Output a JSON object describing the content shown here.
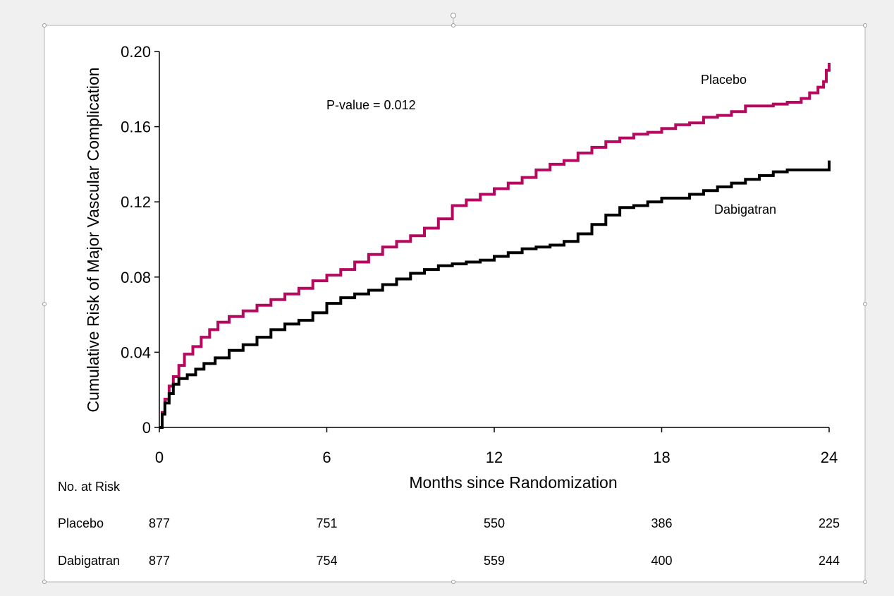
{
  "chart_data": {
    "type": "line",
    "title": "",
    "xlabel": "Months since Randomization",
    "ylabel": "Cumulative Risk of Major Vascular Complication",
    "xlim": [
      0,
      24
    ],
    "ylim": [
      0,
      0.2
    ],
    "x_ticks": [
      "0",
      "6",
      "12",
      "18",
      "24"
    ],
    "y_ticks": [
      "0",
      "0.04",
      "0.08",
      "0.12",
      "0.16",
      "0.20"
    ],
    "grid": false,
    "legend": "inline labels",
    "annotation": "P-value = 0.012",
    "series": [
      {
        "name": "Placebo",
        "color": "#b5095f",
        "line_style": "step",
        "points": [
          [
            0,
            0
          ],
          [
            0.1,
            0.008
          ],
          [
            0.2,
            0.015
          ],
          [
            0.35,
            0.022
          ],
          [
            0.5,
            0.027
          ],
          [
            0.7,
            0.033
          ],
          [
            0.9,
            0.039
          ],
          [
            1.2,
            0.043
          ],
          [
            1.5,
            0.048
          ],
          [
            1.8,
            0.052
          ],
          [
            2.1,
            0.056
          ],
          [
            2.5,
            0.059
          ],
          [
            3.0,
            0.062
          ],
          [
            3.5,
            0.065
          ],
          [
            4.0,
            0.068
          ],
          [
            4.5,
            0.071
          ],
          [
            5.0,
            0.074
          ],
          [
            5.5,
            0.078
          ],
          [
            6.0,
            0.081
          ],
          [
            6.5,
            0.084
          ],
          [
            7.0,
            0.088
          ],
          [
            7.5,
            0.092
          ],
          [
            8.0,
            0.096
          ],
          [
            8.5,
            0.099
          ],
          [
            9.0,
            0.102
          ],
          [
            9.5,
            0.106
          ],
          [
            10.0,
            0.111
          ],
          [
            10.5,
            0.118
          ],
          [
            11.0,
            0.121
          ],
          [
            11.5,
            0.124
          ],
          [
            12.0,
            0.127
          ],
          [
            12.5,
            0.13
          ],
          [
            13.0,
            0.133
          ],
          [
            13.5,
            0.137
          ],
          [
            14.0,
            0.14
          ],
          [
            14.5,
            0.142
          ],
          [
            15.0,
            0.146
          ],
          [
            15.5,
            0.149
          ],
          [
            16.0,
            0.152
          ],
          [
            16.5,
            0.154
          ],
          [
            17.0,
            0.156
          ],
          [
            17.5,
            0.157
          ],
          [
            18.0,
            0.159
          ],
          [
            18.5,
            0.161
          ],
          [
            19.0,
            0.162
          ],
          [
            19.5,
            0.165
          ],
          [
            20.0,
            0.166
          ],
          [
            20.5,
            0.168
          ],
          [
            21.0,
            0.171
          ],
          [
            21.5,
            0.171
          ],
          [
            22.0,
            0.172
          ],
          [
            22.5,
            0.173
          ],
          [
            23.0,
            0.175
          ],
          [
            23.3,
            0.178
          ],
          [
            23.6,
            0.181
          ],
          [
            23.8,
            0.184
          ],
          [
            23.9,
            0.19
          ],
          [
            24.0,
            0.194
          ]
        ]
      },
      {
        "name": "Dabigatran",
        "color": "#000000",
        "line_style": "step",
        "points": [
          [
            0,
            0
          ],
          [
            0.1,
            0.007
          ],
          [
            0.2,
            0.013
          ],
          [
            0.35,
            0.018
          ],
          [
            0.5,
            0.023
          ],
          [
            0.7,
            0.026
          ],
          [
            1.0,
            0.028
          ],
          [
            1.3,
            0.031
          ],
          [
            1.6,
            0.034
          ],
          [
            2.0,
            0.037
          ],
          [
            2.5,
            0.041
          ],
          [
            3.0,
            0.044
          ],
          [
            3.5,
            0.048
          ],
          [
            4.0,
            0.052
          ],
          [
            4.5,
            0.055
          ],
          [
            5.0,
            0.057
          ],
          [
            5.5,
            0.061
          ],
          [
            6.0,
            0.066
          ],
          [
            6.5,
            0.069
          ],
          [
            7.0,
            0.071
          ],
          [
            7.5,
            0.073
          ],
          [
            8.0,
            0.076
          ],
          [
            8.5,
            0.079
          ],
          [
            9.0,
            0.082
          ],
          [
            9.5,
            0.084
          ],
          [
            10.0,
            0.086
          ],
          [
            10.5,
            0.087
          ],
          [
            11.0,
            0.088
          ],
          [
            11.5,
            0.089
          ],
          [
            12.0,
            0.091
          ],
          [
            12.5,
            0.093
          ],
          [
            13.0,
            0.095
          ],
          [
            13.5,
            0.096
          ],
          [
            14.0,
            0.097
          ],
          [
            14.5,
            0.099
          ],
          [
            15.0,
            0.103
          ],
          [
            15.5,
            0.108
          ],
          [
            16.0,
            0.113
          ],
          [
            16.5,
            0.117
          ],
          [
            17.0,
            0.118
          ],
          [
            17.5,
            0.12
          ],
          [
            18.0,
            0.122
          ],
          [
            18.5,
            0.122
          ],
          [
            19.0,
            0.124
          ],
          [
            19.5,
            0.126
          ],
          [
            20.0,
            0.128
          ],
          [
            20.5,
            0.13
          ],
          [
            21.0,
            0.132
          ],
          [
            21.5,
            0.134
          ],
          [
            22.0,
            0.136
          ],
          [
            22.5,
            0.137
          ],
          [
            23.0,
            0.137
          ],
          [
            23.5,
            0.137
          ],
          [
            24.0,
            0.142
          ]
        ]
      }
    ],
    "at_risk": {
      "heading": "No. at Risk",
      "x": [
        0,
        6,
        12,
        18,
        24
      ],
      "rows": [
        {
          "label": "Placebo",
          "values": [
            "877",
            "751",
            "550",
            "386",
            "225"
          ]
        },
        {
          "label": "Dabigatran",
          "values": [
            "877",
            "754",
            "559",
            "400",
            "244"
          ]
        }
      ]
    }
  }
}
